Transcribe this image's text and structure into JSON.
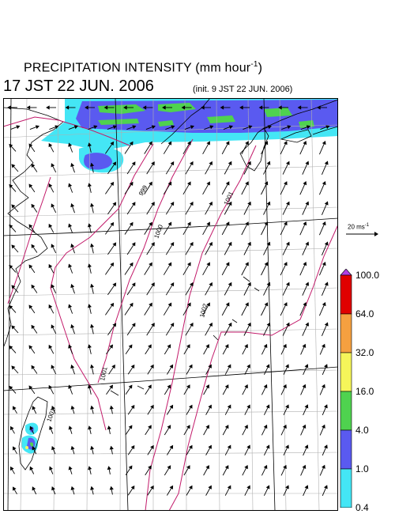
{
  "header": {
    "title_main": "PRECIPITATION INTENSITY (mm hour",
    "title_sup": "-1",
    "title_close": ")",
    "valid_time": "17 JST 22 JUN. 2006",
    "init_time": "(init. 9 JST 22 JUN. 2006)"
  },
  "wind_scale": {
    "label_main": "20 ms",
    "label_sup": "-1"
  },
  "isobars": [
    "999",
    "1000",
    "1001",
    "1002",
    "1001",
    "1001"
  ],
  "colorbar": {
    "colors": [
      "#44e6f5",
      "#5a5af0",
      "#4fd24f",
      "#f5f55a",
      "#f5a040",
      "#e00000"
    ],
    "top_color": "#b040e6",
    "labels": [
      "100.0",
      "64.0",
      "32.0",
      "16.0",
      "4.0",
      "1.0",
      "0.4"
    ]
  },
  "colors": {
    "isobar": "#c21a6a",
    "grid": "#b0b0b0",
    "coast": "#000000"
  }
}
